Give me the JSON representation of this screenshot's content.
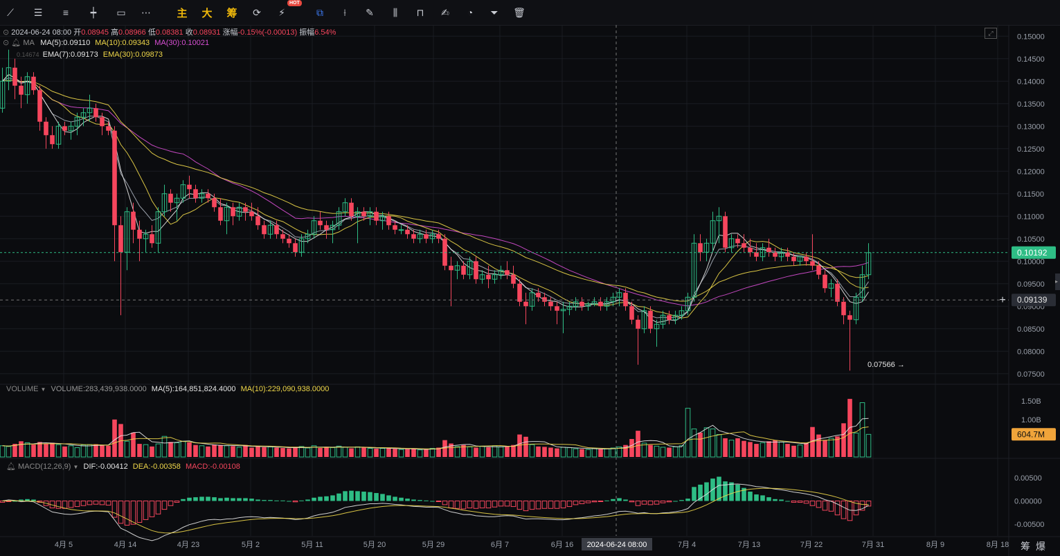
{
  "toolbar": {
    "tools": [
      {
        "name": "trend-line-icon",
        "glyph": "⟋"
      },
      {
        "name": "horizontal-lines-icon",
        "glyph": "☰"
      },
      {
        "name": "parallel-lines-icon",
        "glyph": "≡"
      },
      {
        "name": "horizontal-ray-icon",
        "glyph": "┿"
      },
      {
        "name": "rectangle-icon",
        "glyph": "▭"
      },
      {
        "name": "more-icon",
        "glyph": "⋯"
      }
    ],
    "cn_buttons": [
      "主",
      "大",
      "筹"
    ],
    "hot_badge": "HOT",
    "right_tools": [
      {
        "name": "magnet-copy-icon",
        "glyph": "⧉",
        "active": true
      },
      {
        "name": "ruler-icon",
        "glyph": "⟊"
      },
      {
        "name": "pen-icon",
        "glyph": "✎"
      },
      {
        "name": "candles-icon",
        "glyph": "⫼"
      },
      {
        "name": "lock-icon",
        "glyph": "⊓"
      },
      {
        "name": "note-icon",
        "glyph": "✍"
      },
      {
        "name": "eye-icon",
        "glyph": "◔"
      },
      {
        "name": "filter-icon",
        "glyph": "⏷"
      },
      {
        "name": "trash-icon",
        "glyph": "🗑"
      }
    ]
  },
  "info": {
    "date": "2024-06-24 08:00",
    "open_label": "开",
    "open": "0.08945",
    "high_label": "高",
    "high": "0.08966",
    "low_label": "低",
    "low": "0.08381",
    "close_label": "收",
    "close": "0.08931",
    "change_label": "涨幅",
    "change": "-0.15%(-0.00013)",
    "amplitude_label": "振幅",
    "amplitude": "6.54%"
  },
  "ma_legend": {
    "title": "MA",
    "ma5": "MA(5):0.09110",
    "ma10": "MA(10):0.09343",
    "ma30": "MA(30):0.10021"
  },
  "ema_legend": {
    "title": "EMA(7):0.09173",
    "ema30": "EMA(30):0.09873",
    "hidden_prefix": "0.14674"
  },
  "volume_legend": {
    "title": "VOLUME",
    "volume": "VOLUME:283,439,938.0000",
    "ma5": "MA(5):164,851,824.4000",
    "ma10": "MA(10):229,090,938.0000"
  },
  "macd_legend": {
    "title": "MACD(12,26,9)",
    "dif": "DIF:-0.00412",
    "dea": "DEA:-0.00358",
    "macd": "MACD:-0.00108"
  },
  "price_axis": [
    "0.15000",
    "0.14500",
    "0.14000",
    "0.13500",
    "0.13000",
    "0.12500",
    "0.12000",
    "0.11500",
    "0.11000",
    "0.10500",
    "0.10000",
    "0.09500",
    "0.09000",
    "0.08500",
    "0.08000",
    "0.07500"
  ],
  "volume_axis": [
    "1.50B",
    "1.00B"
  ],
  "macd_axis": [
    "0.00500",
    "0.00000",
    "-0.00500"
  ],
  "current_price_tag": "0.10192",
  "crosshair_price_tag": "0.09139",
  "volume_tag": "604.7M",
  "low_marker": "0.07566 →",
  "x_axis": [
    "4月 5",
    "4月 14",
    "4月 23",
    "5月 2",
    "5月 11",
    "5月 20",
    "5月 29",
    "6月 7",
    "6月 16",
    "7月 4",
    "7月 13",
    "7月 22",
    "7月 31",
    "8月 9",
    "8月 18"
  ],
  "crosshair_date": "2024-06-24 08:00",
  "corner_labels": [
    "筹",
    "爆"
  ],
  "colors": {
    "up": "#2ebd85",
    "down": "#f6465d",
    "ma5": "#e6e6e6",
    "ma10": "#f0d84a",
    "ma30": "#d84fd4",
    "ema": "#f0d84a",
    "dif": "#e6e6e6",
    "dea": "#f0d84a",
    "bg": "#0b0c0f",
    "grid": "#1a1c22"
  },
  "chart_data": {
    "type": "candlestick",
    "interval_days": 1,
    "start_date": "2024-03-31",
    "price_range": [
      0.0725,
      0.1525
    ],
    "ohlc": [
      [
        0.134,
        0.143,
        0.133,
        0.14
      ],
      [
        0.14,
        0.147,
        0.138,
        0.143
      ],
      [
        0.143,
        0.145,
        0.136,
        0.139
      ],
      [
        0.139,
        0.141,
        0.134,
        0.137
      ],
      [
        0.137,
        0.142,
        0.135,
        0.141
      ],
      [
        0.141,
        0.142,
        0.137,
        0.138
      ],
      [
        0.138,
        0.139,
        0.129,
        0.131
      ],
      [
        0.131,
        0.132,
        0.125,
        0.128
      ],
      [
        0.128,
        0.13,
        0.125,
        0.126
      ],
      [
        0.126,
        0.131,
        0.125,
        0.13
      ],
      [
        0.13,
        0.131,
        0.128,
        0.129
      ],
      [
        0.129,
        0.131,
        0.127,
        0.13
      ],
      [
        0.13,
        0.133,
        0.128,
        0.132
      ],
      [
        0.132,
        0.134,
        0.13,
        0.133
      ],
      [
        0.133,
        0.137,
        0.131,
        0.134
      ],
      [
        0.134,
        0.135,
        0.131,
        0.132
      ],
      [
        0.132,
        0.133,
        0.128,
        0.13
      ],
      [
        0.13,
        0.131,
        0.128,
        0.129
      ],
      [
        0.129,
        0.13,
        0.1,
        0.108
      ],
      [
        0.108,
        0.11,
        0.088,
        0.102
      ],
      [
        0.102,
        0.112,
        0.098,
        0.111
      ],
      [
        0.111,
        0.113,
        0.104,
        0.107
      ],
      [
        0.107,
        0.109,
        0.1,
        0.105
      ],
      [
        0.105,
        0.107,
        0.102,
        0.106
      ],
      [
        0.106,
        0.108,
        0.103,
        0.104
      ],
      [
        0.104,
        0.112,
        0.102,
        0.111
      ],
      [
        0.111,
        0.117,
        0.11,
        0.115
      ],
      [
        0.115,
        0.116,
        0.111,
        0.113
      ],
      [
        0.113,
        0.115,
        0.109,
        0.114
      ],
      [
        0.114,
        0.118,
        0.113,
        0.117
      ],
      [
        0.117,
        0.119,
        0.114,
        0.116
      ],
      [
        0.116,
        0.117,
        0.113,
        0.114
      ],
      [
        0.114,
        0.116,
        0.113,
        0.115
      ],
      [
        0.115,
        0.116,
        0.113,
        0.114
      ],
      [
        0.114,
        0.115,
        0.111,
        0.112
      ],
      [
        0.112,
        0.114,
        0.108,
        0.109
      ],
      [
        0.109,
        0.113,
        0.106,
        0.112
      ],
      [
        0.112,
        0.113,
        0.108,
        0.11
      ],
      [
        0.11,
        0.113,
        0.109,
        0.112
      ],
      [
        0.112,
        0.113,
        0.109,
        0.111
      ],
      [
        0.111,
        0.113,
        0.109,
        0.11
      ],
      [
        0.11,
        0.112,
        0.107,
        0.108
      ],
      [
        0.108,
        0.109,
        0.105,
        0.106
      ],
      [
        0.106,
        0.109,
        0.105,
        0.108
      ],
      [
        0.108,
        0.109,
        0.105,
        0.106
      ],
      [
        0.106,
        0.107,
        0.104,
        0.105
      ],
      [
        0.105,
        0.106,
        0.103,
        0.104
      ],
      [
        0.104,
        0.105,
        0.101,
        0.102
      ],
      [
        0.102,
        0.106,
        0.101,
        0.105
      ],
      [
        0.105,
        0.107,
        0.104,
        0.106
      ],
      [
        0.106,
        0.11,
        0.105,
        0.109
      ],
      [
        0.109,
        0.111,
        0.107,
        0.108
      ],
      [
        0.108,
        0.109,
        0.105,
        0.107
      ],
      [
        0.107,
        0.109,
        0.104,
        0.108
      ],
      [
        0.108,
        0.112,
        0.107,
        0.111
      ],
      [
        0.111,
        0.114,
        0.11,
        0.113
      ],
      [
        0.113,
        0.114,
        0.109,
        0.11
      ],
      [
        0.11,
        0.112,
        0.104,
        0.111
      ],
      [
        0.111,
        0.112,
        0.109,
        0.11
      ],
      [
        0.11,
        0.112,
        0.108,
        0.111
      ],
      [
        0.111,
        0.112,
        0.108,
        0.109
      ],
      [
        0.109,
        0.111,
        0.107,
        0.11
      ],
      [
        0.11,
        0.111,
        0.107,
        0.108
      ],
      [
        0.108,
        0.109,
        0.106,
        0.107
      ],
      [
        0.107,
        0.108,
        0.106,
        0.107
      ],
      [
        0.107,
        0.108,
        0.105,
        0.106
      ],
      [
        0.106,
        0.107,
        0.104,
        0.105
      ],
      [
        0.105,
        0.107,
        0.104,
        0.106
      ],
      [
        0.106,
        0.107,
        0.104,
        0.105
      ],
      [
        0.105,
        0.107,
        0.104,
        0.106
      ],
      [
        0.106,
        0.107,
        0.104,
        0.105
      ],
      [
        0.105,
        0.106,
        0.098,
        0.099
      ],
      [
        0.099,
        0.101,
        0.09,
        0.098
      ],
      [
        0.098,
        0.1,
        0.096,
        0.099
      ],
      [
        0.099,
        0.1,
        0.096,
        0.097
      ],
      [
        0.097,
        0.101,
        0.096,
        0.1
      ],
      [
        0.1,
        0.101,
        0.095,
        0.096
      ],
      [
        0.096,
        0.098,
        0.095,
        0.097
      ],
      [
        0.097,
        0.099,
        0.094,
        0.096
      ],
      [
        0.096,
        0.098,
        0.095,
        0.097
      ],
      [
        0.097,
        0.099,
        0.096,
        0.098
      ],
      [
        0.098,
        0.1,
        0.096,
        0.097
      ],
      [
        0.097,
        0.099,
        0.094,
        0.095
      ],
      [
        0.095,
        0.096,
        0.09,
        0.091
      ],
      [
        0.091,
        0.093,
        0.086,
        0.09
      ],
      [
        0.09,
        0.094,
        0.089,
        0.093
      ],
      [
        0.093,
        0.094,
        0.091,
        0.092
      ],
      [
        0.092,
        0.093,
        0.09,
        0.091
      ],
      [
        0.091,
        0.092,
        0.089,
        0.09
      ],
      [
        0.09,
        0.091,
        0.086,
        0.089
      ],
      [
        0.089,
        0.091,
        0.084,
        0.0893
      ],
      [
        0.0893,
        0.091,
        0.088,
        0.09
      ],
      [
        0.09,
        0.092,
        0.089,
        0.091
      ],
      [
        0.091,
        0.092,
        0.089,
        0.09
      ],
      [
        0.09,
        0.091,
        0.089,
        0.0905
      ],
      [
        0.0905,
        0.092,
        0.09,
        0.091
      ],
      [
        0.091,
        0.092,
        0.089,
        0.09
      ],
      [
        0.09,
        0.092,
        0.089,
        0.091
      ],
      [
        0.091,
        0.093,
        0.09,
        0.092
      ],
      [
        0.092,
        0.094,
        0.09,
        0.093
      ],
      [
        0.093,
        0.094,
        0.089,
        0.09
      ],
      [
        0.09,
        0.091,
        0.086,
        0.087
      ],
      [
        0.087,
        0.088,
        0.077,
        0.085
      ],
      [
        0.085,
        0.09,
        0.084,
        0.089
      ],
      [
        0.089,
        0.09,
        0.084,
        0.085
      ],
      [
        0.085,
        0.087,
        0.081,
        0.086
      ],
      [
        0.086,
        0.089,
        0.085,
        0.088
      ],
      [
        0.088,
        0.089,
        0.086,
        0.087
      ],
      [
        0.087,
        0.089,
        0.086,
        0.088
      ],
      [
        0.088,
        0.09,
        0.087,
        0.089
      ],
      [
        0.089,
        0.093,
        0.088,
        0.092
      ],
      [
        0.092,
        0.106,
        0.091,
        0.104
      ],
      [
        0.104,
        0.106,
        0.1,
        0.102
      ],
      [
        0.102,
        0.105,
        0.1,
        0.104
      ],
      [
        0.104,
        0.111,
        0.102,
        0.109
      ],
      [
        0.109,
        0.112,
        0.104,
        0.11
      ],
      [
        0.11,
        0.111,
        0.102,
        0.103
      ],
      [
        0.103,
        0.106,
        0.102,
        0.105
      ],
      [
        0.105,
        0.106,
        0.103,
        0.104
      ],
      [
        0.104,
        0.106,
        0.102,
        0.103
      ],
      [
        0.103,
        0.105,
        0.101,
        0.102
      ],
      [
        0.102,
        0.104,
        0.1,
        0.101
      ],
      [
        0.101,
        0.104,
        0.1,
        0.103
      ],
      [
        0.103,
        0.105,
        0.101,
        0.102
      ],
      [
        0.102,
        0.103,
        0.1,
        0.101
      ],
      [
        0.101,
        0.103,
        0.1,
        0.102
      ],
      [
        0.102,
        0.103,
        0.1,
        0.101
      ],
      [
        0.101,
        0.102,
        0.099,
        0.1
      ],
      [
        0.1,
        0.101,
        0.099,
        0.101
      ],
      [
        0.101,
        0.102,
        0.099,
        0.1
      ],
      [
        0.1,
        0.106,
        0.098,
        0.099
      ],
      [
        0.099,
        0.1,
        0.096,
        0.097
      ],
      [
        0.097,
        0.098,
        0.093,
        0.094
      ],
      [
        0.094,
        0.096,
        0.092,
        0.095
      ],
      [
        0.095,
        0.096,
        0.09,
        0.091
      ],
      [
        0.091,
        0.092,
        0.086,
        0.088
      ],
      [
        0.088,
        0.089,
        0.0757,
        0.087
      ],
      [
        0.087,
        0.093,
        0.086,
        0.092
      ],
      [
        0.092,
        0.099,
        0.091,
        0.097
      ],
      [
        0.097,
        0.104,
        0.096,
        0.1019
      ]
    ],
    "volume_range": [
      0,
      1700000000
    ],
    "volume": [
      300,
      280,
      350,
      420,
      380,
      330,
      400,
      360,
      380,
      330,
      280,
      300,
      250,
      320,
      330,
      340,
      320,
      300,
      1000,
      880,
      420,
      650,
      350,
      330,
      280,
      350,
      550,
      400,
      380,
      420,
      390,
      320,
      300,
      280,
      330,
      320,
      300,
      290,
      260,
      320,
      250,
      290,
      260,
      270,
      250,
      240,
      230,
      260,
      280,
      240,
      300,
      240,
      270,
      250,
      290,
      260,
      230,
      270,
      250,
      230,
      220,
      230,
      240,
      220,
      200,
      210,
      220,
      190,
      200,
      230,
      250,
      450,
      360,
      280,
      320,
      270,
      250,
      290,
      260,
      300,
      270,
      280,
      320,
      600,
      540,
      330,
      280,
      270,
      250,
      230,
      260,
      250,
      220,
      210,
      200,
      230,
      210,
      220,
      240,
      270,
      320,
      480,
      700,
      370,
      320,
      290,
      260,
      250,
      270,
      300,
      1300,
      750,
      650,
      780,
      750,
      600,
      500,
      450,
      500,
      430,
      400,
      350,
      380,
      420,
      450,
      400,
      350,
      300,
      320,
      380,
      800,
      600,
      450,
      500,
      550,
      900,
      1550,
      640,
      1450,
      604
    ],
    "macd_range": [
      -0.0075,
      0.0075
    ],
    "macd_hist": [
      -0.0003,
      -0.0001,
      0.0,
      0.0003,
      0.0004,
      0.0003,
      -0.0003,
      -0.001,
      -0.0015,
      -0.0016,
      -0.0016,
      -0.0014,
      -0.0012,
      -0.001,
      -0.0008,
      -0.0007,
      -0.0008,
      -0.0009,
      -0.0035,
      -0.0048,
      -0.0052,
      -0.005,
      -0.0046,
      -0.004,
      -0.0034,
      -0.0028,
      -0.0018,
      -0.001,
      -0.0003,
      0.0004,
      0.0007,
      0.0008,
      0.0009,
      0.0009,
      0.0008,
      0.0006,
      0.0007,
      0.0006,
      0.0006,
      0.0006,
      0.0005,
      0.0003,
      0.0002,
      0.0002,
      0.0001,
      0.0001,
      0.0,
      -0.0002,
      0.0001,
      0.0003,
      0.0007,
      0.0009,
      0.001,
      0.0012,
      0.0016,
      0.0021,
      0.0022,
      0.0021,
      0.002,
      0.0019,
      0.0017,
      0.0015,
      0.0012,
      0.0009,
      0.0007,
      0.0005,
      0.0003,
      0.0002,
      0.0001,
      0.0,
      -0.0001,
      -0.0008,
      -0.0015,
      -0.0016,
      -0.0017,
      -0.0015,
      -0.0016,
      -0.0015,
      -0.0015,
      -0.0013,
      -0.0011,
      -0.0011,
      -0.0012,
      -0.0018,
      -0.0021,
      -0.0018,
      -0.0017,
      -0.0016,
      -0.0016,
      -0.0016,
      -0.0015,
      -0.0012,
      -0.0008,
      -0.0006,
      -0.0004,
      -0.0002,
      -0.0001,
      0.0001,
      0.0004,
      0.0006,
      0.0003,
      -0.0002,
      -0.001,
      -0.0007,
      -0.0008,
      -0.0007,
      -0.0004,
      -0.0002,
      0.0,
      0.0002,
      0.0005,
      0.003,
      0.0035,
      0.004,
      0.0048,
      0.0052,
      0.0042,
      0.004,
      0.0035,
      0.0028,
      0.002,
      0.0014,
      0.0012,
      0.0008,
      0.0004,
      0.0003,
      0.0,
      -0.0003,
      -0.0003,
      -0.0005,
      -0.001,
      -0.0014,
      -0.002,
      -0.0022,
      -0.003,
      -0.0038,
      -0.0042,
      -0.003,
      -0.002,
      -0.0011
    ]
  }
}
